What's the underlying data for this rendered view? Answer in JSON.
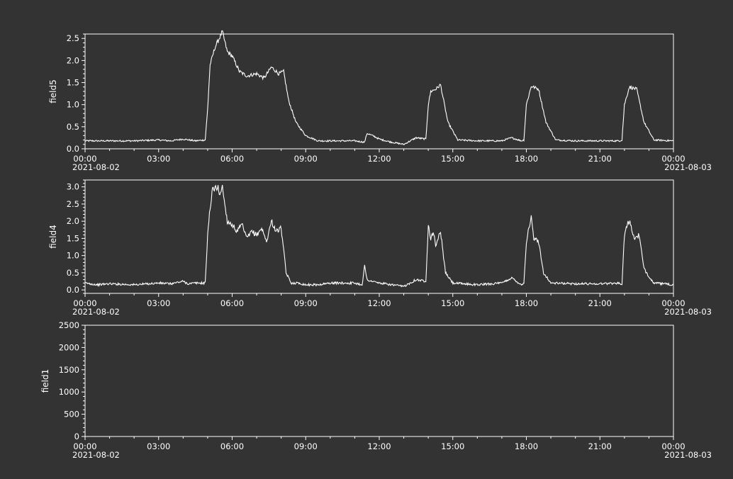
{
  "theme": {
    "background": "#333333",
    "foreground": "#ffffff"
  },
  "chart_data": [
    {
      "type": "line",
      "ylabel": "field5",
      "ylim": [
        0,
        2.6
      ],
      "yticks": [
        "0.0",
        "0.5",
        "1.0",
        "1.5",
        "2.0",
        "2.5"
      ],
      "ytick_values": [
        0,
        0.5,
        1.0,
        1.5,
        2.0,
        2.5
      ],
      "xlim_hours": [
        0,
        24
      ],
      "xticks": [
        "00:00",
        "03:00",
        "06:00",
        "09:00",
        "12:00",
        "15:00",
        "18:00",
        "21:00",
        "00:00"
      ],
      "xtick_dates": {
        "start": "2021-08-02",
        "end": "2021-08-03"
      },
      "series": [
        {
          "x_hours": [
            0,
            0.5,
            1,
            2,
            3,
            3.5,
            4,
            4.5,
            4.9,
            5.0,
            5.1,
            5.3,
            5.6,
            5.8,
            6.0,
            6.3,
            6.6,
            7.0,
            7.3,
            7.6,
            7.9,
            8.1,
            8.3,
            8.6,
            9.0,
            9.5,
            10,
            11,
            11.4,
            11.5,
            11.8,
            12,
            12.5,
            13,
            13.5,
            13.9,
            14.0,
            14.1,
            14.3,
            14.5,
            14.8,
            15.2,
            16,
            17,
            17.4,
            17.8,
            17.9,
            18.0,
            18.2,
            18.5,
            18.8,
            19.2,
            20,
            21,
            21.8,
            21.9,
            22.0,
            22.2,
            22.5,
            22.8,
            23.2,
            24
          ],
          "values": [
            0.18,
            0.18,
            0.18,
            0.18,
            0.2,
            0.18,
            0.22,
            0.18,
            0.2,
            0.9,
            1.9,
            2.3,
            2.65,
            2.2,
            2.1,
            1.75,
            1.65,
            1.7,
            1.6,
            1.85,
            1.7,
            1.75,
            1.1,
            0.6,
            0.3,
            0.18,
            0.18,
            0.18,
            0.15,
            0.35,
            0.28,
            0.22,
            0.15,
            0.1,
            0.25,
            0.22,
            1.0,
            1.3,
            1.35,
            1.45,
            0.6,
            0.2,
            0.18,
            0.18,
            0.25,
            0.18,
            0.2,
            1.0,
            1.42,
            1.35,
            0.6,
            0.2,
            0.18,
            0.18,
            0.18,
            0.2,
            1.0,
            1.4,
            1.35,
            0.6,
            0.2,
            0.18
          ]
        }
      ]
    },
    {
      "type": "line",
      "ylabel": "field4",
      "ylim": [
        -0.1,
        3.2
      ],
      "yticks": [
        "0.0",
        "0.5",
        "1.0",
        "1.5",
        "2.0",
        "2.5",
        "3.0"
      ],
      "ytick_values": [
        0,
        0.5,
        1.0,
        1.5,
        2.0,
        2.5,
        3.0
      ],
      "xlim_hours": [
        0,
        24
      ],
      "xticks": [
        "00:00",
        "03:00",
        "06:00",
        "09:00",
        "12:00",
        "15:00",
        "18:00",
        "21:00",
        "00:00"
      ],
      "xtick_dates": {
        "start": "2021-08-02",
        "end": "2021-08-03"
      },
      "series": [
        {
          "x_hours": [
            0,
            0.5,
            1,
            2,
            3,
            3.5,
            4,
            4.2,
            4.5,
            4.9,
            5.0,
            5.1,
            5.2,
            5.4,
            5.5,
            5.6,
            5.8,
            6.0,
            6.2,
            6.4,
            6.6,
            6.8,
            7.0,
            7.2,
            7.4,
            7.6,
            7.8,
            8.0,
            8.2,
            8.4,
            8.7,
            9.0,
            9.5,
            10,
            11,
            11.3,
            11.4,
            11.5,
            11.7,
            12,
            12.5,
            13,
            13.5,
            13.9,
            14.0,
            14.1,
            14.2,
            14.3,
            14.5,
            14.7,
            15.0,
            16,
            17,
            17.4,
            17.8,
            17.9,
            18.0,
            18.1,
            18.2,
            18.3,
            18.5,
            18.7,
            19.0,
            20,
            21,
            21.8,
            21.9,
            22.0,
            22.1,
            22.2,
            22.4,
            22.6,
            22.8,
            23.2,
            24
          ],
          "values": [
            0.2,
            0.15,
            0.18,
            0.15,
            0.2,
            0.18,
            0.25,
            0.18,
            0.2,
            0.2,
            1.6,
            2.4,
            2.9,
            3.0,
            2.8,
            3.0,
            2.0,
            1.9,
            1.7,
            1.9,
            1.5,
            1.7,
            1.6,
            1.8,
            1.4,
            2.0,
            1.7,
            1.8,
            0.5,
            0.2,
            0.2,
            0.15,
            0.15,
            0.2,
            0.2,
            0.15,
            0.7,
            0.3,
            0.25,
            0.2,
            0.15,
            0.1,
            0.3,
            0.25,
            1.9,
            1.5,
            1.7,
            1.3,
            1.7,
            0.5,
            0.2,
            0.15,
            0.2,
            0.35,
            0.15,
            0.2,
            1.4,
            1.8,
            2.1,
            1.5,
            1.4,
            0.5,
            0.2,
            0.18,
            0.18,
            0.2,
            0.15,
            1.6,
            1.9,
            2.0,
            1.5,
            1.6,
            0.6,
            0.2,
            0.15
          ]
        }
      ]
    },
    {
      "type": "line",
      "ylabel": "field1",
      "ylim": [
        0,
        2500
      ],
      "yticks": [
        "0",
        "500",
        "1000",
        "1500",
        "2000",
        "2500"
      ],
      "ytick_values": [
        0,
        500,
        1000,
        1500,
        2000,
        2500
      ],
      "xlim_hours": [
        0,
        24
      ],
      "xticks": [
        "00:00",
        "03:00",
        "06:00",
        "09:00",
        "12:00",
        "15:00",
        "18:00",
        "21:00",
        "00:00"
      ],
      "xtick_dates": {
        "start": "2021-08-02",
        "end": "2021-08-03"
      },
      "series": []
    }
  ]
}
